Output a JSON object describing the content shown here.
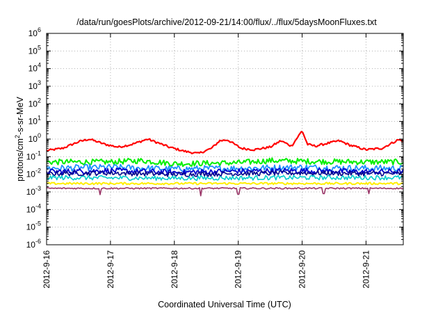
{
  "chart_data": {
    "type": "line",
    "title": "/data/run/goesPlots/archive/2012-09-21/14:00/flux/../flux/5daysMoonFluxes.txt",
    "xlabel": "Coordinated Universal Time (UTC)",
    "ylabel": {
      "pre": "protons/cm",
      "sup": "2",
      "post": "-s-sr-MeV"
    },
    "yscale": "log",
    "ylim_exp": [
      -6,
      6
    ],
    "ytick_exps": [
      -6,
      -5,
      -4,
      -3,
      -2,
      -1,
      0,
      1,
      2,
      3,
      4,
      5,
      6
    ],
    "xlim": [
      "2012-09-16T00:00",
      "2012-09-21T14:00"
    ],
    "x_tick_labels": [
      "2012-9-16",
      "2012-9-17",
      "2012-9-18",
      "2012-9-19",
      "2012-9-20",
      "2012-9-21"
    ],
    "grid": true,
    "legend": "none",
    "series": [
      {
        "color": "#ff0000",
        "width": 2.2,
        "noise": 0.06,
        "points": [
          [
            "2012-09-16T00:00",
            0.22
          ],
          [
            "2012-09-16T06:00",
            0.3
          ],
          [
            "2012-09-16T12:00",
            0.7
          ],
          [
            "2012-09-16T16:00",
            1.0
          ],
          [
            "2012-09-16T22:00",
            0.5
          ],
          [
            "2012-09-17T03:00",
            0.35
          ],
          [
            "2012-09-17T08:00",
            0.5
          ],
          [
            "2012-09-17T14:00",
            1.0
          ],
          [
            "2012-09-17T18:00",
            0.6
          ],
          [
            "2012-09-17T22:00",
            0.35
          ],
          [
            "2012-09-18T04:00",
            0.2
          ],
          [
            "2012-09-18T09:00",
            0.15
          ],
          [
            "2012-09-18T14:00",
            0.3
          ],
          [
            "2012-09-18T17:00",
            0.8
          ],
          [
            "2012-09-18T20:00",
            0.9
          ],
          [
            "2012-09-19T01:00",
            0.3
          ],
          [
            "2012-09-19T06:00",
            0.25
          ],
          [
            "2012-09-19T12:00",
            0.35
          ],
          [
            "2012-09-19T16:00",
            0.8
          ],
          [
            "2012-09-19T20:00",
            0.4
          ],
          [
            "2012-09-20T00:00",
            3.0
          ],
          [
            "2012-09-20T02:00",
            0.5
          ],
          [
            "2012-09-20T05:00",
            0.4
          ],
          [
            "2012-09-20T10:00",
            0.6
          ],
          [
            "2012-09-20T14:00",
            0.8
          ],
          [
            "2012-09-20T18:00",
            0.45
          ],
          [
            "2012-09-21T00:00",
            0.25
          ],
          [
            "2012-09-21T06:00",
            0.3
          ],
          [
            "2012-09-21T12:00",
            0.9
          ],
          [
            "2012-09-21T14:00",
            0.8
          ]
        ]
      },
      {
        "color": "#00ee00",
        "width": 2.0,
        "noise": 0.16,
        "points": [
          [
            "2012-09-16T00:00",
            0.05
          ],
          [
            "2012-09-17T00:00",
            0.05
          ],
          [
            "2012-09-17T12:00",
            0.06
          ],
          [
            "2012-09-18T00:00",
            0.04
          ],
          [
            "2012-09-19T00:00",
            0.045
          ],
          [
            "2012-09-19T12:00",
            0.06
          ],
          [
            "2012-09-20T00:00",
            0.055
          ],
          [
            "2012-09-21T00:00",
            0.05
          ],
          [
            "2012-09-21T14:00",
            0.05
          ]
        ]
      },
      {
        "color": "#1e90ff",
        "width": 1.8,
        "noise": 0.18,
        "points": [
          [
            "2012-09-16T00:00",
            0.022
          ],
          [
            "2012-09-17T00:00",
            0.025
          ],
          [
            "2012-09-18T00:00",
            0.02
          ],
          [
            "2012-09-19T00:00",
            0.022
          ],
          [
            "2012-09-20T00:00",
            0.025
          ],
          [
            "2012-09-21T00:00",
            0.022
          ],
          [
            "2012-09-21T14:00",
            0.022
          ]
        ]
      },
      {
        "color": "#0000cd",
        "width": 1.8,
        "noise": 0.16,
        "points": [
          [
            "2012-09-16T00:00",
            0.014
          ],
          [
            "2012-09-17T00:00",
            0.016
          ],
          [
            "2012-09-18T00:00",
            0.013
          ],
          [
            "2012-09-19T00:00",
            0.015
          ],
          [
            "2012-09-20T00:00",
            0.016
          ],
          [
            "2012-09-21T00:00",
            0.014
          ],
          [
            "2012-09-21T14:00",
            0.014
          ]
        ]
      },
      {
        "color": "#00008b",
        "width": 1.6,
        "noise": 0.14,
        "points": [
          [
            "2012-09-16T00:00",
            0.011
          ],
          [
            "2012-09-17T00:00",
            0.012
          ],
          [
            "2012-09-18T00:00",
            0.01
          ],
          [
            "2012-09-19T00:00",
            0.011
          ],
          [
            "2012-09-20T00:00",
            0.012
          ],
          [
            "2012-09-21T00:00",
            0.011
          ],
          [
            "2012-09-21T14:00",
            0.011
          ]
        ]
      },
      {
        "color": "#00cdcd",
        "width": 1.6,
        "noise": 0.13,
        "points": [
          [
            "2012-09-16T00:00",
            0.0065
          ],
          [
            "2012-09-18T00:00",
            0.006
          ],
          [
            "2012-09-20T00:00",
            0.0065
          ],
          [
            "2012-09-21T14:00",
            0.0065
          ]
        ]
      },
      {
        "color": "#ffee00",
        "width": 2.0,
        "noise": 0.06,
        "points": [
          [
            "2012-09-16T00:00",
            0.003
          ],
          [
            "2012-09-21T14:00",
            0.003
          ]
        ]
      },
      {
        "color": "#993366",
        "width": 1.6,
        "noise": 0.04,
        "points": [
          [
            "2012-09-16T00:00",
            0.0016
          ],
          [
            "2012-09-21T14:00",
            0.0016
          ]
        ],
        "dips": [
          [
            "2012-09-16T20:00",
            0.0007
          ],
          [
            "2012-09-18T10:00",
            0.0006
          ],
          [
            "2012-09-19T00:00",
            0.00075
          ],
          [
            "2012-09-20T08:00",
            0.0008
          ],
          [
            "2012-09-21T01:00",
            0.0008
          ]
        ]
      }
    ]
  }
}
